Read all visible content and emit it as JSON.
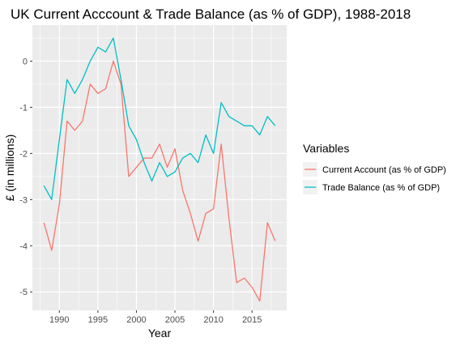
{
  "chart_data": {
    "type": "line",
    "title": "UK Current Acccount & Trade Balance (as % of GDP), 1988-2018",
    "xlabel": "Year",
    "ylabel": "£ (in millions)",
    "xlim": [
      1986.5,
      2019.5
    ],
    "ylim": [
      -5.4,
      0.78
    ],
    "x_ticks": [
      1990,
      1995,
      2000,
      2005,
      2010,
      2015
    ],
    "y_ticks": [
      0,
      -1,
      -2,
      -3,
      -4,
      -5
    ],
    "grid": true,
    "legend": {
      "title": "Variables",
      "position": "right"
    },
    "x": [
      1988,
      1989,
      1990,
      1991,
      1992,
      1993,
      1994,
      1995,
      1996,
      1997,
      1998,
      1999,
      2000,
      2001,
      2002,
      2003,
      2004,
      2005,
      2006,
      2007,
      2008,
      2009,
      2010,
      2011,
      2012,
      2013,
      2014,
      2015,
      2016,
      2017,
      2018
    ],
    "series": [
      {
        "name": "Current Account (as % of GDP)",
        "color": "#F8766D",
        "values": [
          -3.5,
          -4.1,
          -3.1,
          -1.3,
          -1.5,
          -1.3,
          -0.5,
          -0.7,
          -0.6,
          0.0,
          -0.5,
          -2.5,
          -2.3,
          -2.1,
          -2.1,
          -1.8,
          -2.3,
          -1.9,
          -2.8,
          -3.3,
          -3.9,
          -3.3,
          -3.2,
          -1.8,
          -3.4,
          -4.8,
          -4.7,
          -4.9,
          -5.2,
          -3.5,
          -3.9
        ]
      },
      {
        "name": "Trade Balance (as % of GDP)",
        "color": "#00BFC4",
        "values": [
          -2.7,
          -3.0,
          -1.7,
          -0.4,
          -0.7,
          -0.4,
          0.0,
          0.3,
          0.2,
          0.5,
          -0.4,
          -1.4,
          -1.7,
          -2.2,
          -2.6,
          -2.2,
          -2.5,
          -2.4,
          -2.1,
          -2.0,
          -2.2,
          -1.6,
          -2.0,
          -0.9,
          -1.2,
          -1.3,
          -1.4,
          -1.4,
          -1.6,
          -1.2,
          -1.4
        ]
      }
    ]
  }
}
